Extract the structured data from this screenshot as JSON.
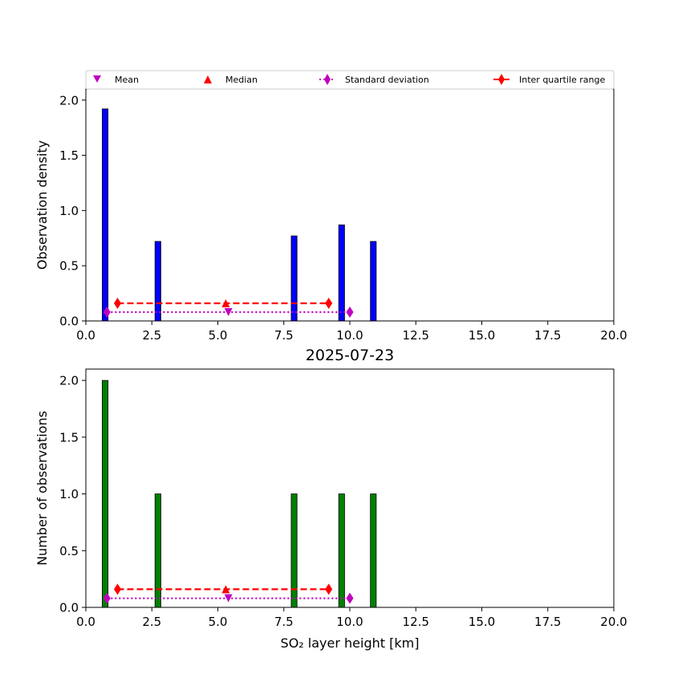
{
  "chart_data": [
    {
      "type": "bar",
      "ylabel": "Observation density",
      "xlabel": "",
      "title": "",
      "xlim": [
        0,
        20
      ],
      "ylim": [
        0,
        2.1
      ],
      "xticks": [
        "0.0",
        "2.5",
        "5.0",
        "7.5",
        "10.0",
        "12.5",
        "15.0",
        "17.5",
        "20.0"
      ],
      "yticks": [
        "0.0",
        "0.5",
        "1.0",
        "1.5",
        "2.0"
      ],
      "bar_color": "#0000ff",
      "bars": [
        {
          "x_start": 0.62,
          "x_end": 0.84,
          "value": 1.92
        },
        {
          "x_start": 2.62,
          "x_end": 2.84,
          "value": 0.72
        },
        {
          "x_start": 7.78,
          "x_end": 8.0,
          "value": 0.77
        },
        {
          "x_start": 9.58,
          "x_end": 9.8,
          "value": 0.87
        },
        {
          "x_start": 10.78,
          "x_end": 11.0,
          "value": 0.72
        }
      ],
      "stats": {
        "mean": {
          "x": 5.4,
          "y": 0.08,
          "color": "#bf00bf"
        },
        "median": {
          "x": 5.3,
          "y": 0.16,
          "color": "#ff0000"
        },
        "std": {
          "x": [
            0.8,
            10.0
          ],
          "y": 0.08,
          "color": "#bf00bf"
        },
        "iqr": {
          "x": [
            1.2,
            9.2
          ],
          "y": 0.16,
          "color": "#ff0000"
        }
      },
      "legend": {
        "position": "top",
        "entries": [
          "Mean",
          "Median",
          "Standard deviation",
          "Inter quartile range"
        ]
      }
    },
    {
      "type": "bar",
      "title": "2025-07-23",
      "ylabel": "Number of observations",
      "xlabel": "SO₂ layer height [km]",
      "xlim": [
        0,
        20
      ],
      "ylim": [
        0,
        2.1
      ],
      "xticks": [
        "0.0",
        "2.5",
        "5.0",
        "7.5",
        "10.0",
        "12.5",
        "15.0",
        "17.5",
        "20.0"
      ],
      "yticks": [
        "0.0",
        "0.5",
        "1.0",
        "1.5",
        "2.0"
      ],
      "bar_color": "#008000",
      "bars": [
        {
          "x_start": 0.62,
          "x_end": 0.84,
          "value": 2
        },
        {
          "x_start": 2.62,
          "x_end": 2.84,
          "value": 1
        },
        {
          "x_start": 7.78,
          "x_end": 8.0,
          "value": 1
        },
        {
          "x_start": 9.58,
          "x_end": 9.8,
          "value": 1
        },
        {
          "x_start": 10.78,
          "x_end": 11.0,
          "value": 1
        }
      ],
      "stats": {
        "mean": {
          "x": 5.4,
          "y": 0.08,
          "color": "#bf00bf"
        },
        "median": {
          "x": 5.3,
          "y": 0.16,
          "color": "#ff0000"
        },
        "std": {
          "x": [
            0.8,
            10.0
          ],
          "y": 0.08,
          "color": "#bf00bf"
        },
        "iqr": {
          "x": [
            1.2,
            9.2
          ],
          "y": 0.16,
          "color": "#ff0000"
        }
      }
    }
  ]
}
